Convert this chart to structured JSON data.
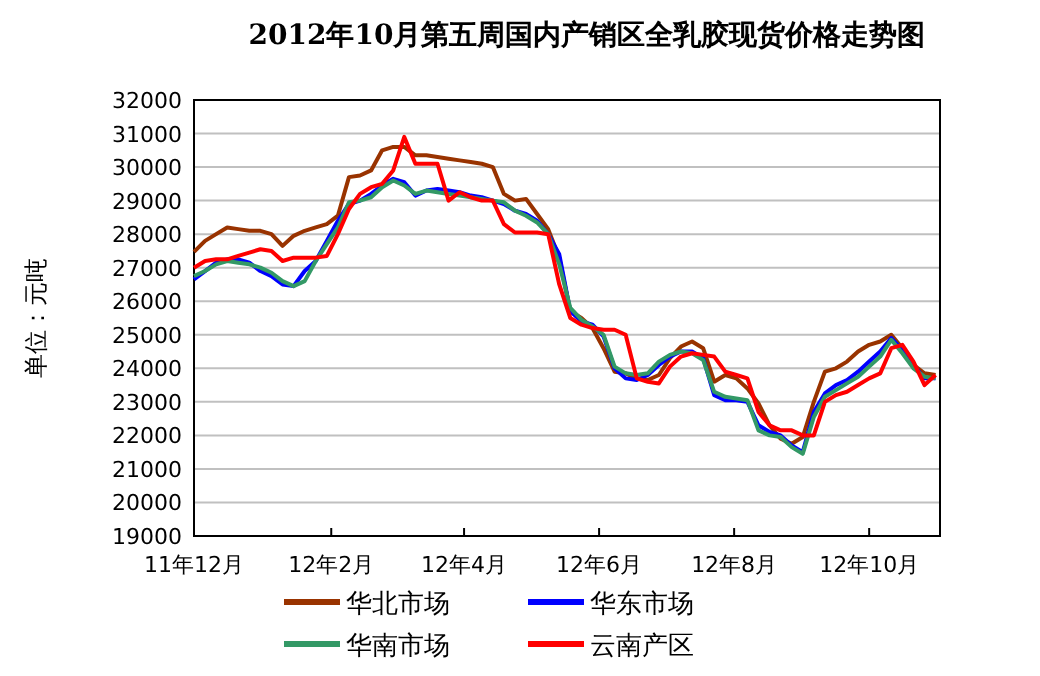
{
  "chart_data": {
    "type": "line",
    "title": "2012年10月第五周国内产销区全乳胶现货价格走势图",
    "ylabel": "单位：元吨",
    "x": [
      "2011-12-01",
      "2011-12-06",
      "2011-12-11",
      "2011-12-16",
      "2011-12-21",
      "2011-12-26",
      "2011-12-31",
      "2012-01-05",
      "2012-01-10",
      "2012-01-15",
      "2012-01-20",
      "2012-01-25",
      "2012-01-30",
      "2012-02-04",
      "2012-02-09",
      "2012-02-14",
      "2012-02-19",
      "2012-02-24",
      "2012-02-29",
      "2012-03-05",
      "2012-03-10",
      "2012-03-15",
      "2012-03-20",
      "2012-03-25",
      "2012-03-30",
      "2012-04-04",
      "2012-04-09",
      "2012-04-14",
      "2012-04-19",
      "2012-04-24",
      "2012-04-29",
      "2012-05-04",
      "2012-05-09",
      "2012-05-14",
      "2012-05-19",
      "2012-05-24",
      "2012-05-29",
      "2012-06-03",
      "2012-06-08",
      "2012-06-13",
      "2012-06-18",
      "2012-06-23",
      "2012-06-28",
      "2012-07-03",
      "2012-07-08",
      "2012-07-13",
      "2012-07-18",
      "2012-07-23",
      "2012-07-28",
      "2012-08-02",
      "2012-08-07",
      "2012-08-12",
      "2012-08-17",
      "2012-08-22",
      "2012-08-27",
      "2012-09-01",
      "2012-09-06",
      "2012-09-11",
      "2012-09-16",
      "2012-09-21",
      "2012-09-26",
      "2012-10-01",
      "2012-10-06",
      "2012-10-11",
      "2012-10-16",
      "2012-10-21",
      "2012-10-26",
      "2012-10-31"
    ],
    "series": [
      {
        "name": "华北市场",
        "color": "#993300",
        "values": [
          27470,
          27800,
          28000,
          28200,
          28150,
          28100,
          28100,
          28000,
          27650,
          27950,
          28100,
          28200,
          28300,
          28550,
          29700,
          29750,
          29900,
          30500,
          30600,
          30600,
          30350,
          30350,
          30300,
          30250,
          30200,
          30150,
          30100,
          30000,
          29200,
          29000,
          29050,
          28600,
          28150,
          27300,
          25700,
          25500,
          25200,
          24600,
          23900,
          23850,
          23700,
          23650,
          23800,
          24300,
          24650,
          24800,
          24600,
          23600,
          23800,
          23700,
          23400,
          22950,
          22300,
          21900,
          21750,
          21950,
          23000,
          23900,
          24000,
          24200,
          24500,
          24700,
          24800,
          25000,
          24600,
          24100,
          23850,
          23800
        ]
      },
      {
        "name": "华东市场",
        "color": "#0000ff",
        "values": [
          26650,
          26900,
          27150,
          27250,
          27250,
          27150,
          26900,
          26750,
          26500,
          26450,
          26900,
          27200,
          27800,
          28400,
          28900,
          29000,
          29200,
          29450,
          29650,
          29550,
          29150,
          29300,
          29350,
          29300,
          29250,
          29150,
          29100,
          29000,
          28900,
          28700,
          28600,
          28400,
          28000,
          27400,
          25700,
          25400,
          25300,
          24950,
          24000,
          23700,
          23650,
          23800,
          24100,
          24350,
          24500,
          24500,
          24300,
          23200,
          23050,
          23050,
          23000,
          22300,
          22100,
          22000,
          21700,
          21500,
          22700,
          23250,
          23500,
          23650,
          23900,
          24200,
          24500,
          24900,
          24550,
          24100,
          23700,
          23700
        ]
      },
      {
        "name": "华南市场",
        "color": "#339966",
        "values": [
          26750,
          26900,
          27100,
          27200,
          27150,
          27100,
          27000,
          26850,
          26600,
          26450,
          26600,
          27200,
          27700,
          28200,
          28950,
          29000,
          29100,
          29400,
          29600,
          29450,
          29200,
          29300,
          29250,
          29200,
          29150,
          29100,
          29050,
          29000,
          28950,
          28700,
          28550,
          28350,
          28000,
          27100,
          25800,
          25450,
          25250,
          25000,
          24050,
          23850,
          23800,
          23850,
          24200,
          24400,
          24500,
          24450,
          24250,
          23300,
          23150,
          23100,
          23050,
          22150,
          22000,
          21950,
          21650,
          21450,
          22550,
          23150,
          23350,
          23550,
          23750,
          24050,
          24350,
          24850,
          24450,
          24000,
          23750,
          23700
        ]
      },
      {
        "name": "云南产区",
        "color": "#ff0000",
        "values": [
          27000,
          27200,
          27250,
          27250,
          27350,
          27450,
          27550,
          27500,
          27200,
          27300,
          27300,
          27300,
          27350,
          28000,
          28750,
          29200,
          29400,
          29500,
          29900,
          30900,
          30100,
          30100,
          30100,
          29000,
          29250,
          29100,
          29000,
          29000,
          28300,
          28050,
          28050,
          28050,
          28000,
          26500,
          25500,
          25300,
          25200,
          25150,
          25150,
          25000,
          23700,
          23600,
          23550,
          24050,
          24350,
          24450,
          24400,
          24350,
          23900,
          23800,
          23700,
          22700,
          22300,
          22150,
          22150,
          22000,
          22000,
          23000,
          23200,
          23300,
          23500,
          23700,
          23850,
          24600,
          24700,
          24200,
          23500,
          23800
        ]
      }
    ],
    "xlim": [
      "2011-12-01",
      "2012-11-02"
    ],
    "xticks": [
      {
        "value": "2011-12-01",
        "label": "11年12月"
      },
      {
        "value": "2012-02-01",
        "label": "12年2月"
      },
      {
        "value": "2012-04-01",
        "label": "12年4月"
      },
      {
        "value": "2012-06-01",
        "label": "12年6月"
      },
      {
        "value": "2012-08-01",
        "label": "12年8月"
      },
      {
        "value": "2012-10-01",
        "label": "12年10月"
      }
    ],
    "ylim": [
      19000,
      32000
    ],
    "yticks": [
      19000,
      20000,
      21000,
      22000,
      23000,
      24000,
      25000,
      26000,
      27000,
      28000,
      29000,
      30000,
      31000,
      32000
    ],
    "grid": "y",
    "legend": "bottom",
    "marker": "none",
    "line_style": "solid"
  }
}
